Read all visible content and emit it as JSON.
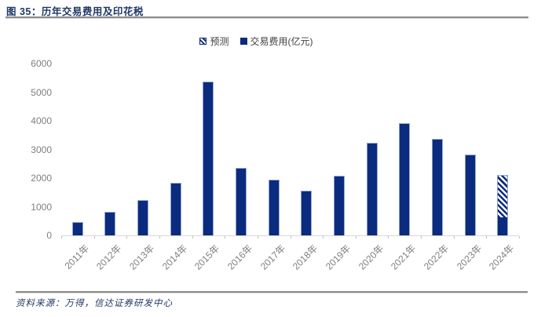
{
  "header": {
    "title": "图 35：历年交易费用及印花税"
  },
  "legend": [
    {
      "label": "预测",
      "swatch": "hatched"
    },
    {
      "label": "交易费用(亿元)",
      "swatch": "solid"
    }
  ],
  "footer": {
    "source": "资料来源：万得，信达证券研发中心"
  },
  "colors": {
    "bar": "#0a2b7e",
    "bar_border": "#93a3ce",
    "title_navy": "#1f3864",
    "axis_text_gray": "#7f7f7f",
    "rule_gray": "#8c8c8c"
  },
  "chart_data": {
    "type": "bar",
    "title": "历年交易费用及印花税",
    "categories": [
      "2011年",
      "2012年",
      "2013年",
      "2014年",
      "2015年",
      "2016年",
      "2017年",
      "2018年",
      "2019年",
      "2020年",
      "2021年",
      "2022年",
      "2023年",
      "2024年"
    ],
    "series": [
      {
        "name": "交易费用(亿元)",
        "style": "solid",
        "values": [
          460,
          820,
          1230,
          1830,
          5370,
          2360,
          1940,
          1550,
          2080,
          3230,
          3910,
          3360,
          2820,
          640
        ]
      },
      {
        "name": "预测",
        "style": "hatched",
        "values": [
          0,
          0,
          0,
          0,
          0,
          0,
          0,
          0,
          0,
          0,
          0,
          0,
          0,
          1460
        ]
      }
    ],
    "stacked": true,
    "xlabel": "",
    "ylabel": "",
    "ylim": [
      0,
      6000
    ],
    "yticks": [
      0,
      1000,
      2000,
      3000,
      4000,
      5000,
      6000
    ],
    "grid": false,
    "legend_position": "top-center"
  }
}
